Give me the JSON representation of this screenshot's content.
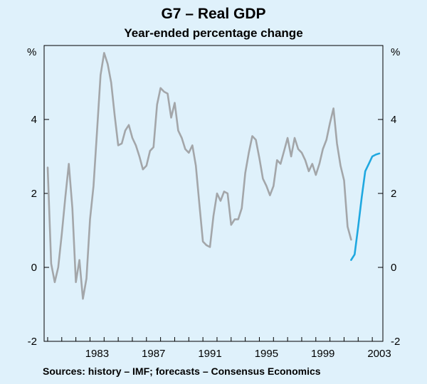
{
  "chart_data": {
    "type": "line",
    "title": "G7 – Real GDP",
    "subtitle": "Year-ended percentage change",
    "ylabel_left": "%",
    "ylabel_right": "%",
    "ylim": [
      -2,
      6
    ],
    "xlim": [
      1979.75,
      2003.75
    ],
    "yticks": [
      -2,
      0,
      2,
      4
    ],
    "ytick_labels": [
      "-2",
      "0",
      "2",
      "4"
    ],
    "xticks": [
      1983,
      1987,
      1991,
      1995,
      1999,
      2003
    ],
    "xtick_labels": [
      "1983",
      "1987",
      "1991",
      "1995",
      "1999",
      "2003"
    ],
    "source": "Sources: history – IMF; forecasts – Consensus Economics",
    "series": [
      {
        "name": "history",
        "color": "#a3a6a9",
        "x": [
          1980.0,
          1980.25,
          1980.5,
          1980.75,
          1981.0,
          1981.25,
          1981.5,
          1981.75,
          1982.0,
          1982.25,
          1982.5,
          1982.75,
          1983.0,
          1983.25,
          1983.5,
          1983.75,
          1984.0,
          1984.25,
          1984.5,
          1984.75,
          1985.0,
          1985.25,
          1985.5,
          1985.75,
          1986.0,
          1986.25,
          1986.5,
          1986.75,
          1987.0,
          1987.25,
          1987.5,
          1987.75,
          1988.0,
          1988.25,
          1988.5,
          1988.75,
          1989.0,
          1989.25,
          1989.5,
          1989.75,
          1990.0,
          1990.25,
          1990.5,
          1990.75,
          1991.0,
          1991.25,
          1991.5,
          1991.75,
          1992.0,
          1992.25,
          1992.5,
          1992.75,
          1993.0,
          1993.25,
          1993.5,
          1993.75,
          1994.0,
          1994.25,
          1994.5,
          1994.75,
          1995.0,
          1995.25,
          1995.5,
          1995.75,
          1996.0,
          1996.25,
          1996.5,
          1996.75,
          1997.0,
          1997.25,
          1997.5,
          1997.75,
          1998.0,
          1998.25,
          1998.5,
          1998.75,
          1999.0,
          1999.25,
          1999.5,
          1999.75,
          2000.0,
          2000.25,
          2000.5,
          2000.75,
          2001.0,
          2001.25,
          2001.5
        ],
        "values": [
          2.7,
          0.1,
          -0.4,
          0.0,
          0.9,
          1.9,
          2.8,
          1.6,
          -0.4,
          0.2,
          -0.85,
          -0.3,
          1.3,
          2.2,
          3.7,
          5.2,
          5.8,
          5.5,
          5.0,
          4.1,
          3.3,
          3.35,
          3.7,
          3.85,
          3.5,
          3.3,
          3.0,
          2.65,
          2.75,
          3.15,
          3.25,
          4.4,
          4.85,
          4.75,
          4.7,
          4.05,
          4.45,
          3.7,
          3.5,
          3.2,
          3.1,
          3.3,
          2.75,
          1.7,
          0.7,
          0.6,
          0.55,
          1.4,
          2.0,
          1.8,
          2.05,
          2.0,
          1.15,
          1.3,
          1.3,
          1.6,
          2.55,
          3.1,
          3.55,
          3.45,
          2.95,
          2.4,
          2.2,
          1.95,
          2.2,
          2.9,
          2.8,
          3.15,
          3.5,
          3.0,
          3.5,
          3.2,
          3.1,
          2.9,
          2.6,
          2.8,
          2.5,
          2.8,
          3.2,
          3.45,
          3.9,
          4.3,
          3.35,
          2.75,
          2.35,
          1.1,
          0.75
        ]
      },
      {
        "name": "forecasts",
        "color": "#1fa8e0",
        "x": [
          2001.5,
          2001.75,
          2002.0,
          2002.25,
          2002.5,
          2002.75,
          2003.0,
          2003.25,
          2003.5
        ],
        "values": [
          0.2,
          0.35,
          1.1,
          1.9,
          2.6,
          2.8,
          3.0,
          3.05,
          3.08
        ]
      }
    ]
  }
}
